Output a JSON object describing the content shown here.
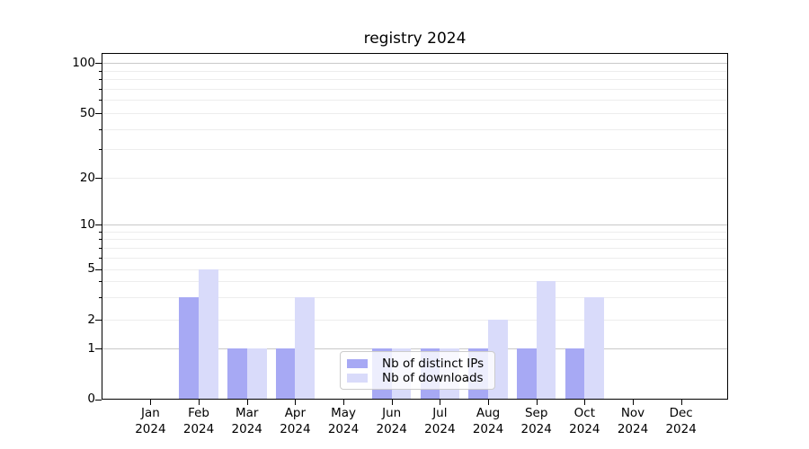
{
  "chart_data": {
    "type": "bar",
    "title": "registry 2024",
    "months": [
      "Jan",
      "Feb",
      "Mar",
      "Apr",
      "May",
      "Jun",
      "Jul",
      "Aug",
      "Sep",
      "Oct",
      "Nov",
      "Dec"
    ],
    "year": "2024",
    "series": [
      {
        "name": "Nb of distinct IPs",
        "color": "#a7a9f4",
        "values": [
          0,
          3,
          1,
          1,
          0,
          1,
          1,
          1,
          1,
          1,
          0,
          0
        ]
      },
      {
        "name": "Nb of downloads",
        "color": "#d9dbfa",
        "values": [
          0,
          5,
          1,
          3,
          0,
          1,
          1,
          2,
          4,
          3,
          0,
          0
        ]
      }
    ],
    "y_axis": {
      "scale": "symlog",
      "tick_values": [
        0,
        1,
        2,
        5,
        10,
        20,
        50,
        100
      ],
      "tick_labels": [
        "0",
        "1",
        "2",
        "5",
        "10",
        "20",
        "50",
        "100"
      ],
      "major_gridlines": [
        1,
        10,
        100
      ],
      "minor_gridlines": [
        2,
        3,
        4,
        5,
        6,
        7,
        8,
        9,
        20,
        30,
        40,
        50,
        60,
        70,
        80,
        90
      ],
      "range": [
        0,
        115
      ]
    },
    "legend": {
      "location": "lower center",
      "entries": [
        "Nb of distinct IPs",
        "Nb of downloads"
      ]
    },
    "grid": "horizontal"
  },
  "colors": {
    "background": "#ffffff",
    "bar_distinct_ips": "#a7a9f4",
    "bar_downloads": "#d9dbfa",
    "grid_major": "#c9c9c9",
    "grid_minor": "#ededed",
    "axis": "#000000",
    "legend_border": "#cccccc"
  }
}
